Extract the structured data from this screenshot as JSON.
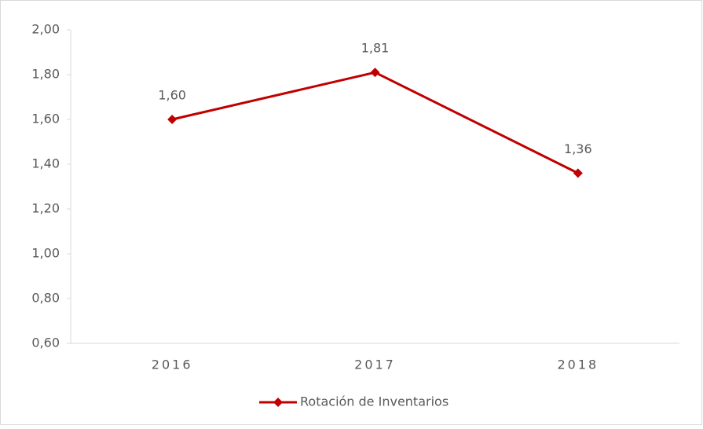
{
  "chart_data": {
    "type": "line",
    "categories": [
      "2016",
      "2017",
      "2018"
    ],
    "series": [
      {
        "name": "Rotación de Inventarios",
        "color": "#c00000",
        "values": [
          1.6,
          1.81,
          1.36
        ],
        "value_labels": [
          "1,60",
          "1,81",
          "1,36"
        ]
      }
    ],
    "ylim": [
      0.6,
      2.0
    ],
    "yticks": [
      {
        "value": 0.6,
        "label": "0,60"
      },
      {
        "value": 0.8,
        "label": "0,80"
      },
      {
        "value": 1.0,
        "label": "1,00"
      },
      {
        "value": 1.2,
        "label": "1,20"
      },
      {
        "value": 1.4,
        "label": "1,40"
      },
      {
        "value": 1.6,
        "label": "1,60"
      },
      {
        "value": 1.8,
        "label": "1,80"
      },
      {
        "value": 2.0,
        "label": "2,00"
      }
    ],
    "legend": "bottom",
    "grid": false
  }
}
